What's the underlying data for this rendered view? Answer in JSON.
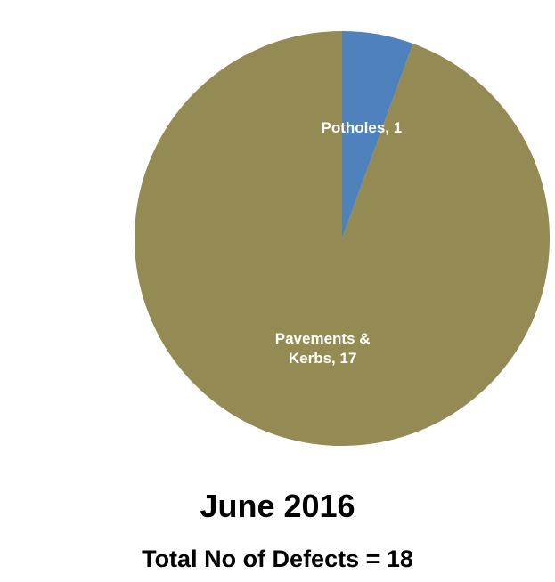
{
  "chart_data": {
    "type": "pie",
    "title": "June 2016",
    "subtitle": "Total No of Defects = 18",
    "categories": [
      "Potholes",
      "Pavements & Kerbs"
    ],
    "values": [
      1,
      17
    ],
    "value_labels": [
      "Potholes, 1",
      "Pavements & Kerbs, 17"
    ],
    "colors": [
      "#4f81bd",
      "#948a54"
    ]
  }
}
